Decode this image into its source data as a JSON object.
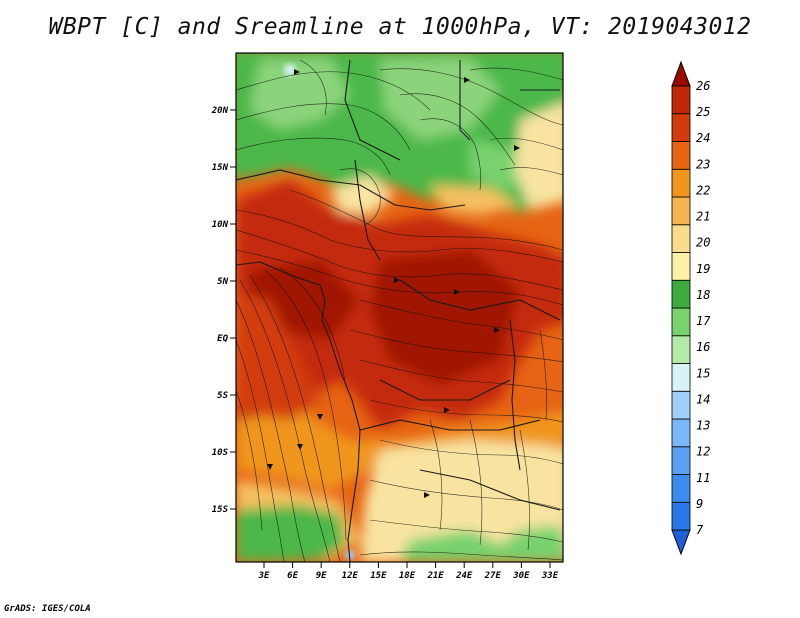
{
  "title": "WBPT [C] and Sreamline at 1000hPa, VT: 2019043012",
  "credit": "GrADS: IGES/COLA",
  "lat_ticks": [
    "20N",
    "15N",
    "10N",
    "5N",
    "EQ",
    "5S",
    "10S",
    "15S"
  ],
  "lon_ticks": [
    "3E",
    "6E",
    "9E",
    "12E",
    "15E",
    "18E",
    "21E",
    "24E",
    "27E",
    "30E",
    "33E"
  ],
  "colorbar": {
    "levels": [
      "7",
      "9",
      "11",
      "12",
      "13",
      "14",
      "15",
      "16",
      "17",
      "18",
      "19",
      "20",
      "21",
      "22",
      "23",
      "24",
      "25",
      "26"
    ],
    "colors": [
      "#1e5fd8",
      "#2878e8",
      "#3c8cf0",
      "#5aa0f5",
      "#7cb8f8",
      "#a0d0fa",
      "#d8f2f8",
      "#b4eaa8",
      "#78d26e",
      "#3caa3c",
      "#fff0a8",
      "#fadc8c",
      "#f5b450",
      "#f0961e",
      "#e66414",
      "#d23c0a",
      "#be2808",
      "#9a0a00"
    ]
  },
  "legend_colors": {
    "deep_red": "#a01400",
    "red": "#c42a08",
    "orange_red": "#e05614",
    "orange": "#f0961e",
    "light_orange": "#f5c060",
    "pale_yellow": "#f8e4a0",
    "green": "#4cb848",
    "light_green": "#8cd47c"
  }
}
